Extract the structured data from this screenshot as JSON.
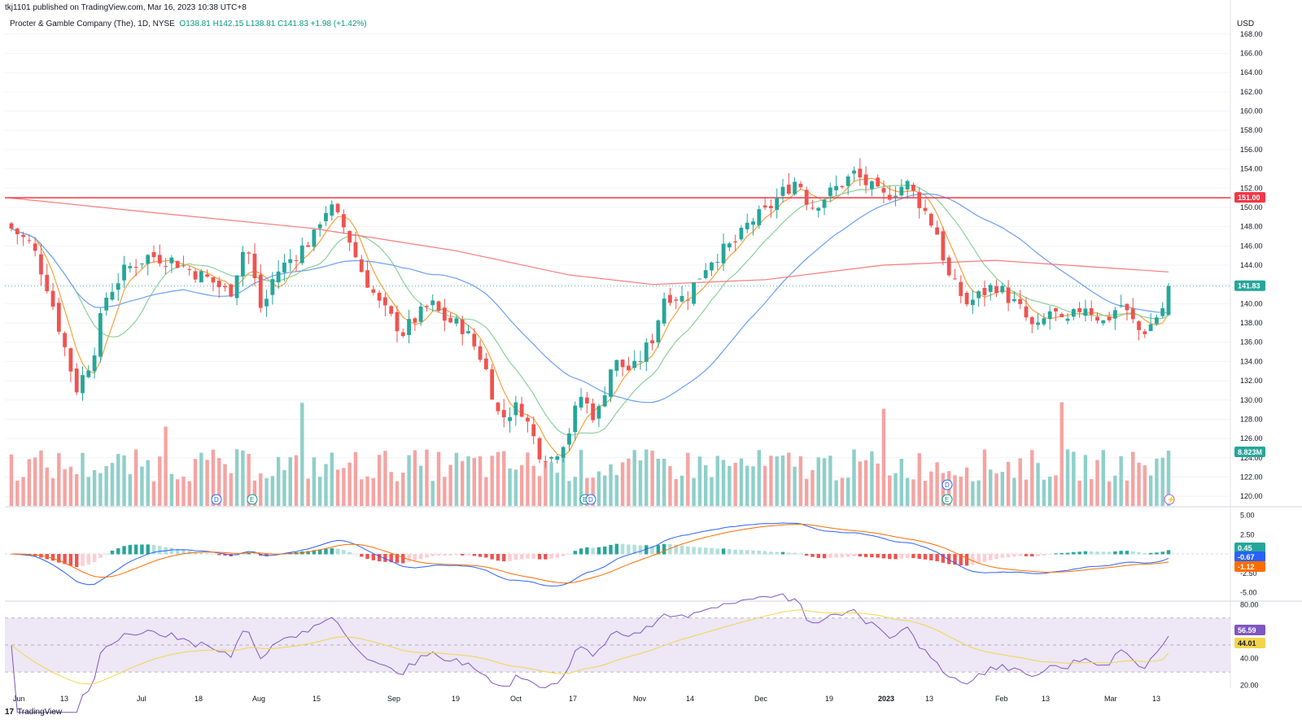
{
  "header": {
    "published": "tkj1101 published on TradingView.com, Mar 16, 2023 10:38 UTC+8",
    "symbol_line": "Procter & Gamble Company (The), 1D, NYSE",
    "ohlc": "O138.81  H142.15  L138.81  C141.83  +1.98 (+1.42%)"
  },
  "footer": {
    "logo": "17",
    "brand": "TradingView"
  },
  "axis": {
    "currency": "USD",
    "price_ticks": [
      "168.00",
      "166.00",
      "164.00",
      "162.00",
      "160.00",
      "158.00",
      "156.00",
      "154.00",
      "152.00",
      "150.00",
      "148.00",
      "146.00",
      "144.00",
      "142.00",
      "140.00",
      "138.00",
      "136.00",
      "134.00",
      "132.00",
      "130.00",
      "128.00",
      "126.00",
      "124.00",
      "122.00",
      "120.00"
    ],
    "macd_ticks": [
      "5.00",
      "2.50",
      "-2.50",
      "-5.00"
    ],
    "rsi_ticks": [
      "80.00",
      "40.00",
      "20.00"
    ],
    "x_ticks": [
      "Jun",
      "13",
      "Jul",
      "18",
      "Aug",
      "15",
      "Sep",
      "19",
      "Oct",
      "17",
      "Nov",
      "14",
      "Dec",
      "19",
      "2023",
      "13",
      "Feb",
      "13",
      "Mar",
      "13"
    ]
  },
  "badges": {
    "resistance": "151.00",
    "last_price": "141.83",
    "volume": "8.823M",
    "macd_hist": "0.45",
    "macd_line": "-0.67",
    "macd_signal": "-1.12",
    "rsi": "56.59",
    "rsi_ma": "44.01"
  },
  "colors": {
    "up": "#26a69a",
    "down": "#ef5350",
    "vol_up": "#8fcfc9",
    "vol_down": "#f4a4a2",
    "ma_fast": "#f7a13b",
    "ma_mid": "#8bd19a",
    "ma_slow": "#6c9ff2",
    "ma_long": "#f77b7b",
    "resistance": "#f23645",
    "rsi_line": "#7e57c2",
    "rsi_ma": "#f2d54c"
  },
  "events": [
    "D",
    "E",
    "E",
    "D",
    "D",
    "E"
  ],
  "chart_data": {
    "type": "candlestick",
    "x_range": [
      "2022-05-31",
      "2023-03-15"
    ],
    "ylim": [
      119,
      169
    ],
    "resistance_level": 151.0,
    "last": {
      "open": 138.81,
      "high": 142.15,
      "low": 138.81,
      "close": 141.83,
      "change": 1.98,
      "change_pct": 1.42
    },
    "close_path": [
      [
        "2022-05-31",
        148.1
      ],
      [
        "2022-06-06",
        146.0
      ],
      [
        "2022-06-10",
        141.5
      ],
      [
        "2022-06-13",
        137.0
      ],
      [
        "2022-06-16",
        132.5
      ],
      [
        "2022-06-17",
        131.2
      ],
      [
        "2022-06-21",
        134.5
      ],
      [
        "2022-06-24",
        140.5
      ],
      [
        "2022-06-29",
        143.5
      ],
      [
        "2022-07-05",
        145.0
      ],
      [
        "2022-07-11",
        144.5
      ],
      [
        "2022-07-15",
        143.5
      ],
      [
        "2022-07-20",
        142.5
      ],
      [
        "2022-07-25",
        141.0
      ],
      [
        "2022-07-29",
        146.5
      ],
      [
        "2022-08-02",
        139.0
      ],
      [
        "2022-08-05",
        143.0
      ],
      [
        "2022-08-10",
        145.0
      ],
      [
        "2022-08-15",
        147.0
      ],
      [
        "2022-08-17",
        149.5
      ],
      [
        "2022-08-19",
        150.0
      ],
      [
        "2022-08-23",
        147.5
      ],
      [
        "2022-08-26",
        144.0
      ],
      [
        "2022-08-31",
        140.0
      ],
      [
        "2022-09-06",
        137.0
      ],
      [
        "2022-09-08",
        138.0
      ],
      [
        "2022-09-13",
        140.0
      ],
      [
        "2022-09-16",
        138.5
      ],
      [
        "2022-09-21",
        137.5
      ],
      [
        "2022-09-26",
        134.0
      ],
      [
        "2022-09-30",
        128.0
      ],
      [
        "2022-10-05",
        129.5
      ],
      [
        "2022-10-10",
        124.5
      ],
      [
        "2022-10-13",
        124.0
      ],
      [
        "2022-10-17",
        126.5
      ],
      [
        "2022-10-20",
        130.5
      ],
      [
        "2022-10-24",
        128.0
      ],
      [
        "2022-10-28",
        134.0
      ],
      [
        "2022-11-02",
        133.0
      ],
      [
        "2022-11-07",
        136.5
      ],
      [
        "2022-11-10",
        141.0
      ],
      [
        "2022-11-15",
        140.5
      ],
      [
        "2022-11-21",
        144.5
      ],
      [
        "2022-11-28",
        146.5
      ],
      [
        "2022-12-01",
        148.5
      ],
      [
        "2022-12-05",
        149.5
      ],
      [
        "2022-12-09",
        151.5
      ],
      [
        "2022-12-13",
        153.0
      ],
      [
        "2022-12-16",
        150.0
      ],
      [
        "2022-12-21",
        151.5
      ],
      [
        "2022-12-27",
        153.5
      ],
      [
        "2023-01-03",
        151.0
      ],
      [
        "2023-01-09",
        152.5
      ],
      [
        "2023-01-13",
        150.0
      ],
      [
        "2023-01-17",
        147.0
      ],
      [
        "2023-01-19",
        143.0
      ],
      [
        "2023-01-24",
        140.0
      ],
      [
        "2023-01-31",
        142.0
      ],
      [
        "2023-02-06",
        139.5
      ],
      [
        "2023-02-10",
        137.0
      ],
      [
        "2023-02-14",
        139.5
      ],
      [
        "2023-02-17",
        137.5
      ],
      [
        "2023-02-22",
        140.0
      ],
      [
        "2023-02-27",
        138.0
      ],
      [
        "2023-03-03",
        140.0
      ],
      [
        "2023-03-08",
        137.0
      ],
      [
        "2023-03-10",
        137.5
      ],
      [
        "2023-03-14",
        139.85
      ],
      [
        "2023-03-15",
        141.83
      ]
    ],
    "ma_long_path": [
      [
        "2022-05-31",
        151.0
      ],
      [
        "2022-07-05",
        149.5
      ],
      [
        "2022-08-15",
        147.8
      ],
      [
        "2022-09-19",
        145.5
      ],
      [
        "2022-10-17",
        143.0
      ],
      [
        "2022-11-07",
        142.0
      ],
      [
        "2022-12-05",
        142.5
      ],
      [
        "2023-01-03",
        144.0
      ],
      [
        "2023-01-31",
        144.5
      ],
      [
        "2023-03-15",
        143.3
      ]
    ],
    "macd_range": [
      -6,
      6
    ],
    "rsi_range": [
      18,
      82
    ],
    "rsi_band": [
      30,
      70
    ],
    "rsi_last": 56.59,
    "rsi_ma_last": 44.01,
    "volume_last": "8.823M"
  }
}
